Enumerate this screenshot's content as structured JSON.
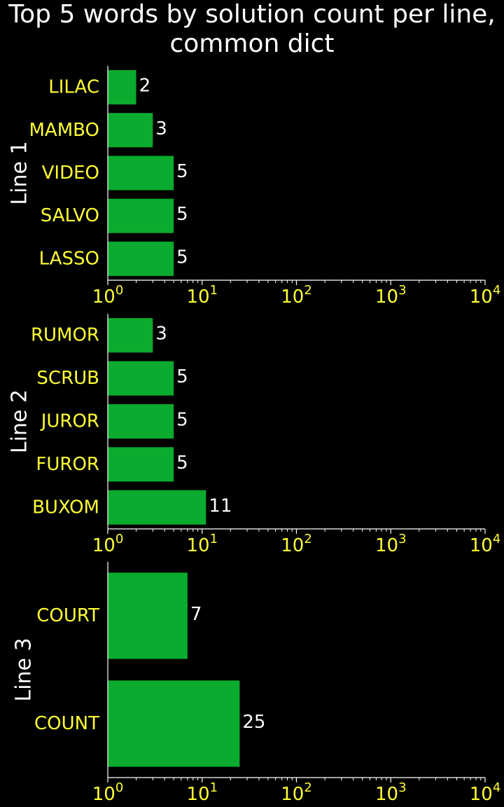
{
  "title_lines": [
    "Top 5 words by solution count per line,",
    "common dict"
  ],
  "colors": {
    "background": "#000000",
    "bar": "#0aab2e",
    "category_text": "#ffff33",
    "tick_text": "#ffff33",
    "value_text": "#ffffff",
    "title_text": "#ffffff",
    "axis": "#ffffff"
  },
  "chart_data": [
    {
      "type": "bar",
      "orientation": "horizontal",
      "ylabel": "Line 1",
      "categories": [
        "LILAC",
        "MAMBO",
        "VIDEO",
        "SALVO",
        "LASSO"
      ],
      "values": [
        2,
        3,
        5,
        5,
        5
      ],
      "xscale": "log",
      "xlim": [
        1,
        10000
      ],
      "xticks": [
        {
          "base": "10",
          "exp": "0"
        },
        {
          "base": "10",
          "exp": "1"
        },
        {
          "base": "10",
          "exp": "2"
        },
        {
          "base": "10",
          "exp": "3"
        },
        {
          "base": "10",
          "exp": "4"
        }
      ],
      "value_labels": [
        "2",
        "3",
        "5",
        "5",
        "5"
      ]
    },
    {
      "type": "bar",
      "orientation": "horizontal",
      "ylabel": "Line 2",
      "categories": [
        "RUMOR",
        "SCRUB",
        "JUROR",
        "FUROR",
        "BUXOM"
      ],
      "values": [
        3,
        5,
        5,
        5,
        11
      ],
      "xscale": "log",
      "xlim": [
        1,
        10000
      ],
      "xticks": [
        {
          "base": "10",
          "exp": "0"
        },
        {
          "base": "10",
          "exp": "1"
        },
        {
          "base": "10",
          "exp": "2"
        },
        {
          "base": "10",
          "exp": "3"
        },
        {
          "base": "10",
          "exp": "4"
        }
      ],
      "value_labels": [
        "3",
        "5",
        "5",
        "5",
        "11"
      ]
    },
    {
      "type": "bar",
      "orientation": "horizontal",
      "ylabel": "Line 3",
      "categories": [
        "COURT",
        "COUNT"
      ],
      "values": [
        7,
        25
      ],
      "xscale": "log",
      "xlim": [
        1,
        10000
      ],
      "xticks": [
        {
          "base": "10",
          "exp": "0"
        },
        {
          "base": "10",
          "exp": "1"
        },
        {
          "base": "10",
          "exp": "2"
        },
        {
          "base": "10",
          "exp": "3"
        },
        {
          "base": "10",
          "exp": "4"
        }
      ],
      "value_labels": [
        "7",
        "25"
      ]
    }
  ]
}
